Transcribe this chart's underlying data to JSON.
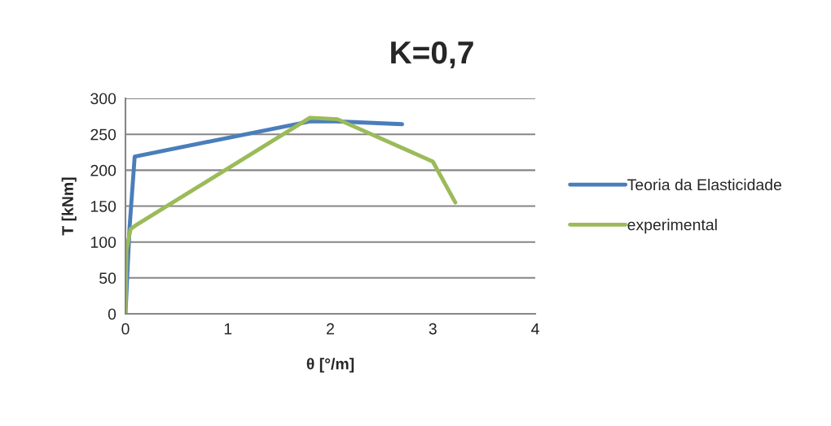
{
  "chart_data": {
    "type": "line",
    "title": "K=0,7",
    "xlabel": "θ [°/m]",
    "ylabel": "T [kNm]",
    "series": [
      {
        "name": "Teoria da Elasticidade",
        "color": "#4a7ebb",
        "x": [
          0,
          0.04,
          0.09,
          1.8,
          2.05,
          2.7
        ],
        "values": [
          0,
          120,
          219,
          268,
          268,
          264
        ]
      },
      {
        "name": "experimental",
        "color": "#9bbb59",
        "x": [
          0,
          0.01,
          0.05,
          0.12,
          1.8,
          2.07,
          3.0,
          3.22
        ],
        "values": [
          0,
          90,
          118,
          125,
          273,
          271,
          212,
          155
        ]
      }
    ],
    "xlim": [
      0,
      4
    ],
    "xticks": [
      0,
      1,
      2,
      3,
      4
    ],
    "ylim": [
      0,
      300
    ],
    "yticks": [
      0,
      50,
      100,
      150,
      200,
      250,
      300
    ],
    "grid": "y",
    "legend": "right",
    "marker": "none",
    "line_style": "solid"
  }
}
